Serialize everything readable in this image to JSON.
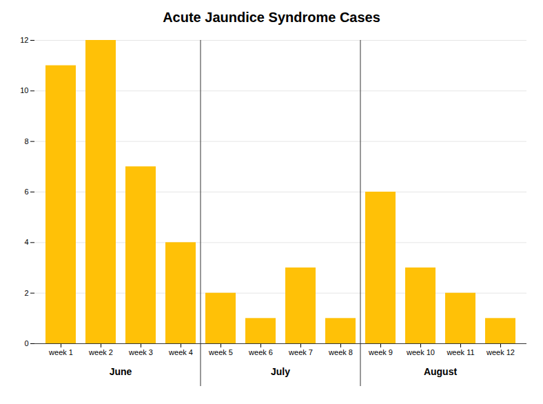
{
  "chart_data": {
    "type": "bar",
    "title": "Acute Jaundice Syndrome Cases",
    "categories": [
      "week 1",
      "week 2",
      "week 3",
      "week 4",
      "week 5",
      "week 6",
      "week 7",
      "week 8",
      "week 9",
      "week 10",
      "week 11",
      "week 12"
    ],
    "values": [
      11,
      12,
      7,
      4,
      2,
      1,
      3,
      1,
      6,
      3,
      2,
      1
    ],
    "color": "#FFC107",
    "ylim": [
      0,
      12
    ],
    "yticks": [
      0,
      2,
      4,
      6,
      8,
      10,
      12
    ],
    "grid": true,
    "annotations": [
      {
        "text": "June",
        "from": "week 1",
        "to": "week 4"
      },
      {
        "text": "July",
        "from": "week 5",
        "to": "week 8"
      },
      {
        "text": "August",
        "from": "week 9",
        "to": "week 12"
      }
    ]
  }
}
